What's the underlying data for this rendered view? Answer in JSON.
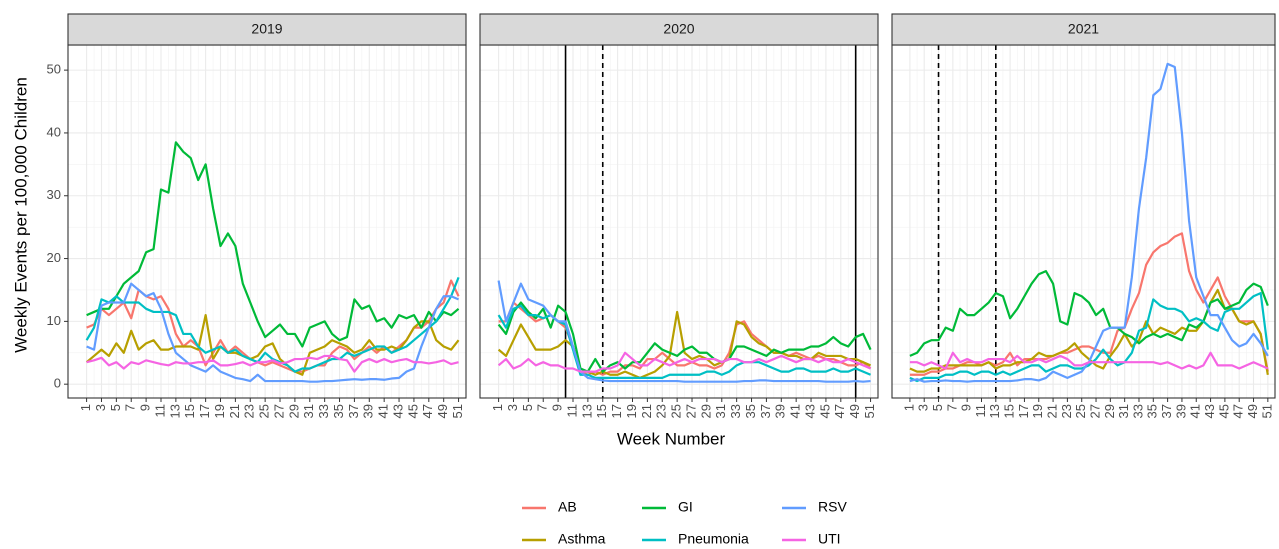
{
  "chart_data": {
    "type": "line",
    "y_label": "Weekly Events per 100,000 Children",
    "x_label": "Week Number",
    "x": [
      1,
      2,
      3,
      4,
      5,
      6,
      7,
      8,
      9,
      10,
      11,
      12,
      13,
      14,
      15,
      16,
      17,
      18,
      19,
      20,
      21,
      22,
      23,
      24,
      25,
      26,
      27,
      28,
      29,
      30,
      31,
      32,
      33,
      34,
      35,
      36,
      37,
      38,
      39,
      40,
      41,
      42,
      43,
      44,
      45,
      46,
      47,
      48,
      49,
      50,
      51
    ],
    "xlim": [
      -1.5,
      52
    ],
    "xticks": [
      1,
      3,
      5,
      7,
      9,
      11,
      13,
      15,
      17,
      19,
      21,
      23,
      25,
      27,
      29,
      31,
      33,
      35,
      37,
      39,
      41,
      43,
      45,
      47,
      49,
      51
    ],
    "ylim": [
      -2.2,
      54
    ],
    "yticks": [
      0,
      10,
      20,
      30,
      40,
      50
    ],
    "grid": true,
    "series": [
      {
        "name": "AB",
        "color": "#F8766D"
      },
      {
        "name": "Asthma",
        "color": "#B79F00"
      },
      {
        "name": "GI",
        "color": "#00BA38"
      },
      {
        "name": "Pneumonia",
        "color": "#00BFC4"
      },
      {
        "name": "RSV",
        "color": "#619CFF"
      },
      {
        "name": "UTI",
        "color": "#F564E3"
      }
    ],
    "panels": [
      {
        "title": "2019",
        "vlines": [],
        "series": [
          {
            "values": [
              9,
              9.5,
              12,
              11,
              12,
              13,
              10.5,
              15,
              14,
              13.5,
              14,
              12,
              8,
              6,
              7,
              6,
              3,
              5,
              7,
              5,
              6,
              5,
              4,
              3.5,
              3,
              3.5,
              3,
              2.5,
              2,
              2,
              2.5,
              3,
              3,
              5,
              6,
              5.5,
              4,
              5,
              6,
              5,
              6,
              5,
              6,
              7,
              9,
              9,
              10,
              12,
              13,
              16.5,
              14
            ]
          },
          {
            "values": [
              3.5,
              4.5,
              5.5,
              4.5,
              6.5,
              5,
              8.5,
              5.5,
              6.5,
              7,
              5.5,
              5.5,
              6,
              6,
              6,
              5.5,
              11,
              4,
              6,
              5,
              5,
              4.5,
              4,
              4.5,
              6,
              6.5,
              4,
              3,
              2,
              1.5,
              5,
              5.5,
              6,
              7,
              6.5,
              6,
              5,
              5.5,
              7,
              5.5,
              5.5,
              6,
              5.5,
              7,
              9,
              10,
              10,
              7,
              6,
              5.5,
              7
            ]
          },
          {
            "values": [
              11,
              11.5,
              12,
              12,
              14,
              16,
              17,
              18,
              21,
              21.5,
              31,
              30.5,
              38.5,
              37,
              36,
              32.5,
              35,
              28,
              22,
              24,
              22,
              16,
              13,
              10,
              7.5,
              8.5,
              9.5,
              8,
              8,
              6,
              9,
              9.5,
              10,
              8,
              7,
              7.5,
              13.5,
              12,
              12.5,
              10,
              10.5,
              9,
              11,
              10.5,
              11,
              9,
              11.5,
              10,
              11.5,
              11,
              12
            ]
          },
          {
            "values": [
              7,
              9,
              13.5,
              13,
              14,
              13,
              13,
              13,
              12,
              11.5,
              11.5,
              11.5,
              11,
              8,
              8,
              6,
              5,
              5.5,
              6,
              5,
              5.5,
              4.5,
              4,
              3.5,
              5,
              4,
              3.5,
              3,
              2,
              2.5,
              2.5,
              3,
              3.5,
              4,
              4,
              5,
              4.5,
              5,
              5.5,
              6,
              6,
              5,
              5.5,
              6,
              7,
              8,
              9,
              10,
              12,
              14,
              17
            ]
          },
          {
            "values": [
              6,
              5.5,
              12.5,
              13,
              13,
              13,
              16,
              15,
              14,
              14.5,
              12,
              8,
              5,
              4,
              3,
              2.5,
              2,
              3,
              2,
              1.5,
              1,
              0.8,
              0.5,
              1.5,
              0.5,
              0.5,
              0.5,
              0.5,
              0.5,
              0.5,
              0.4,
              0.4,
              0.5,
              0.5,
              0.6,
              0.7,
              0.8,
              0.7,
              0.8,
              0.8,
              0.7,
              0.9,
              1,
              2,
              2.5,
              6,
              9,
              12,
              14,
              14,
              13.5
            ]
          },
          {
            "values": [
              3.5,
              3.8,
              4.2,
              3,
              3.5,
              2.5,
              3.5,
              3.2,
              3.8,
              3.5,
              3.2,
              3,
              3.5,
              3.3,
              3.3,
              3.5,
              3.5,
              3.8,
              3,
              3,
              3.2,
              3.5,
              3,
              3.5,
              3.5,
              3.8,
              3.3,
              3.5,
              4,
              4,
              4.2,
              4,
              4.5,
              4.5,
              4,
              3.8,
              2,
              3.5,
              4,
              3.5,
              4,
              3.5,
              3.8,
              4,
              3.5,
              3.5,
              3.3,
              3.5,
              3.8,
              3.2,
              3.5
            ]
          }
        ]
      },
      {
        "title": "2020",
        "vlines": [
          {
            "value": 10,
            "style": "solid"
          },
          {
            "value": 15,
            "style": "dashed"
          },
          {
            "value": 49,
            "style": "solid"
          }
        ],
        "series": [
          {
            "values": [
              10,
              10,
              13,
              12,
              11,
              10,
              10.5,
              11,
              10,
              9,
              6,
              2,
              1.5,
              2,
              1.5,
              2,
              2,
              3,
              3,
              2.5,
              4,
              4,
              5,
              4,
              3,
              3,
              3.5,
              3,
              3,
              2.5,
              3,
              5,
              9.5,
              10,
              8,
              7,
              6,
              5,
              5,
              4.5,
              5,
              4.5,
              4,
              4.5,
              4,
              4,
              3.5,
              3,
              3,
              3.5,
              2.5
            ]
          },
          {
            "values": [
              5.5,
              4.5,
              7,
              9.5,
              7.5,
              5.5,
              5.5,
              5.5,
              6,
              7,
              6,
              2,
              2,
              1.5,
              2,
              1.5,
              1.5,
              2,
              1.5,
              1,
              1.5,
              2,
              3,
              4.5,
              11.5,
              5,
              4,
              4.5,
              4,
              3,
              3.5,
              4,
              10,
              9.5,
              7.5,
              6.5,
              6,
              5,
              5,
              4.5,
              4.5,
              4,
              4,
              5,
              4.5,
              4.5,
              4.5,
              4,
              4,
              3.5,
              3
            ]
          },
          {
            "values": [
              9.5,
              8,
              11.5,
              13,
              11.5,
              10.5,
              12,
              9,
              12.5,
              11.5,
              8,
              2.5,
              2,
              4,
              2,
              3,
              3.5,
              2.5,
              3.5,
              3.5,
              5,
              6.5,
              5.5,
              5,
              4.5,
              5.5,
              6,
              5,
              5,
              4,
              3.5,
              4,
              6,
              6,
              5.5,
              5,
              4.5,
              5.5,
              5,
              5.5,
              5.5,
              5.5,
              6,
              6,
              6.5,
              7.5,
              6.5,
              6,
              7.5,
              8,
              5.5
            ]
          },
          {
            "values": [
              11,
              9,
              12,
              12.5,
              11,
              11,
              10.5,
              11,
              10,
              9.5,
              5.5,
              1.5,
              1.5,
              1,
              1,
              1,
              1,
              1,
              1,
              1,
              1,
              1,
              1,
              1.5,
              1.5,
              1.5,
              1.5,
              1.5,
              2,
              2,
              1.5,
              2,
              3,
              3.5,
              3.5,
              3.5,
              3,
              2.5,
              2,
              2,
              2.5,
              2.5,
              2,
              2,
              2,
              2.5,
              2,
              2,
              2.5,
              2,
              1.5
            ]
          },
          {
            "values": [
              16.5,
              10,
              13,
              16,
              13.5,
              13,
              12.5,
              11,
              10,
              10,
              6,
              2,
              1,
              0.8,
              0.6,
              0.5,
              0.5,
              0.5,
              0.5,
              0.5,
              0.5,
              0.5,
              0.5,
              0.5,
              0.5,
              0.4,
              0.4,
              0.4,
              0.4,
              0.4,
              0.4,
              0.4,
              0.4,
              0.5,
              0.5,
              0.6,
              0.6,
              0.5,
              0.5,
              0.5,
              0.5,
              0.5,
              0.5,
              0.5,
              0.4,
              0.4,
              0.4,
              0.4,
              0.5,
              0.4,
              0.5
            ]
          },
          {
            "values": [
              3,
              4,
              2.5,
              3,
              4,
              3,
              3.5,
              3,
              3,
              2.5,
              2.5,
              2,
              2,
              2,
              2.5,
              2.5,
              3,
              5,
              4,
              3,
              3,
              4,
              3.5,
              3,
              3.5,
              4,
              3.5,
              4,
              4,
              4,
              3.5,
              4,
              4,
              3.5,
              3.5,
              4,
              3.5,
              4,
              4.5,
              4,
              3.5,
              4,
              4,
              3.5,
              4,
              3.5,
              3.5,
              4,
              3.5,
              3,
              2.5
            ]
          }
        ]
      },
      {
        "title": "2021",
        "vlines": [
          {
            "value": 5,
            "style": "dashed"
          },
          {
            "value": 13,
            "style": "dashed"
          }
        ],
        "series": [
          {
            "values": [
              1.5,
              1.5,
              1.5,
              2,
              2,
              2.5,
              2.5,
              3,
              3.5,
              3.5,
              3,
              3.5,
              3,
              3.5,
              5,
              3,
              4,
              4,
              4,
              4,
              4.5,
              5,
              5,
              5.5,
              6,
              6,
              5.5,
              5,
              5,
              8.5,
              9,
              12,
              14.5,
              19,
              21,
              22,
              22.5,
              23.5,
              24,
              18,
              15,
              13,
              15,
              17,
              14,
              12,
              10,
              10,
              10,
              8,
              2
            ]
          },
          {
            "values": [
              2.5,
              2,
              2,
              2.5,
              2.5,
              3,
              3,
              3,
              3,
              3,
              3,
              3.5,
              2.5,
              3,
              3,
              3.5,
              3.5,
              4,
              5,
              4.5,
              4.5,
              5,
              5.5,
              6.5,
              5,
              4,
              3,
              2.5,
              4.5,
              6,
              8,
              6,
              7,
              10,
              8,
              9,
              8.5,
              8,
              9,
              8.5,
              8.5,
              10,
              13,
              15,
              12,
              12,
              10,
              9.5,
              10,
              8,
              1.5
            ]
          },
          {
            "values": [
              4.5,
              5,
              6.5,
              7,
              7,
              9,
              8.5,
              12,
              11,
              11,
              12,
              13,
              14.5,
              14,
              10.5,
              12,
              14,
              16,
              17.5,
              18,
              16,
              10,
              9.5,
              14.5,
              14,
              13,
              11,
              12,
              9,
              9,
              8,
              7.5,
              6.5,
              7.5,
              8,
              7.5,
              8,
              7.5,
              7,
              9.5,
              9,
              10,
              13,
              13.5,
              12,
              12.5,
              13,
              15,
              16,
              15.5,
              12.5
            ]
          },
          {
            "values": [
              1,
              0.5,
              1,
              1,
              1,
              1.5,
              1.5,
              2,
              2,
              1.5,
              2,
              2,
              1.5,
              2,
              1.5,
              2,
              2.5,
              3,
              3,
              2,
              2.5,
              3,
              3,
              2.5,
              2.5,
              3,
              4,
              5.5,
              4,
              3,
              3.5,
              5,
              8.5,
              9,
              13.5,
              12.5,
              12,
              12,
              11.5,
              10,
              10.5,
              10,
              9,
              8.5,
              11.5,
              12,
              12,
              13,
              14,
              14.5,
              5.5
            ]
          },
          {
            "values": [
              0.5,
              0.8,
              0.4,
              0.5,
              0.5,
              0.6,
              0.5,
              0.5,
              0.4,
              0.5,
              0.5,
              0.5,
              0.5,
              0.5,
              0.5,
              0.6,
              0.8,
              0.8,
              0.6,
              1,
              2,
              1.5,
              1,
              1.5,
              2,
              3.5,
              6,
              8.5,
              9,
              9,
              9,
              17,
              28,
              36,
              46,
              47,
              51,
              50.5,
              40,
              26,
              17,
              14,
              11,
              11,
              9,
              7,
              6,
              6.5,
              8,
              6.5,
              4.5
            ]
          },
          {
            "values": [
              3.5,
              3.5,
              3,
              3.5,
              3,
              2.5,
              5,
              3.5,
              4,
              3.5,
              3.5,
              4,
              4,
              4,
              3.5,
              4.5,
              3.5,
              3.5,
              4,
              3.5,
              4,
              4.5,
              4,
              3,
              3,
              3.5,
              3.5,
              3.5,
              3.5,
              3.5,
              3.5,
              3.5,
              3.5,
              3.5,
              3.5,
              3.2,
              3.5,
              3,
              2.5,
              3,
              2.5,
              3,
              5,
              3,
              3,
              3,
              2.5,
              3,
              3.5,
              3,
              2.5
            ]
          }
        ]
      }
    ]
  }
}
